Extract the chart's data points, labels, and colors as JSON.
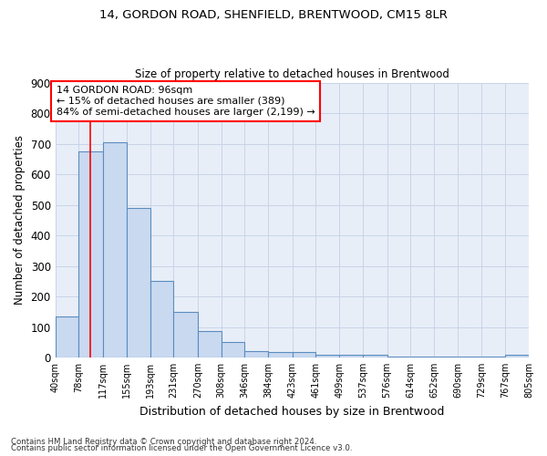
{
  "title1": "14, GORDON ROAD, SHENFIELD, BRENTWOOD, CM15 8LR",
  "title2": "Size of property relative to detached houses in Brentwood",
  "xlabel": "Distribution of detached houses by size in Brentwood",
  "ylabel": "Number of detached properties",
  "bar_color": "#c9d9f0",
  "bar_edge_color": "#5b8dbe",
  "grid_color": "#c8d4e8",
  "bg_color": "#e8eef8",
  "red_line_x": 96,
  "bin_edges": [
    40,
    78,
    117,
    155,
    193,
    231,
    270,
    308,
    346,
    384,
    423,
    461,
    499,
    537,
    576,
    614,
    652,
    690,
    729,
    767,
    805
  ],
  "bar_heights": [
    135,
    675,
    705,
    490,
    252,
    150,
    88,
    50,
    22,
    18,
    18,
    10,
    10,
    10,
    2,
    2,
    2,
    2,
    2,
    8
  ],
  "ylim": [
    0,
    900
  ],
  "yticks": [
    0,
    100,
    200,
    300,
    400,
    500,
    600,
    700,
    800,
    900
  ],
  "annotation_text": "14 GORDON ROAD: 96sqm\n← 15% of detached houses are smaller (389)\n84% of semi-detached houses are larger (2,199) →",
  "annotation_box_color": "white",
  "annotation_box_edge_color": "red",
  "footnote1": "Contains HM Land Registry data © Crown copyright and database right 2024.",
  "footnote2": "Contains public sector information licensed under the Open Government Licence v3.0."
}
